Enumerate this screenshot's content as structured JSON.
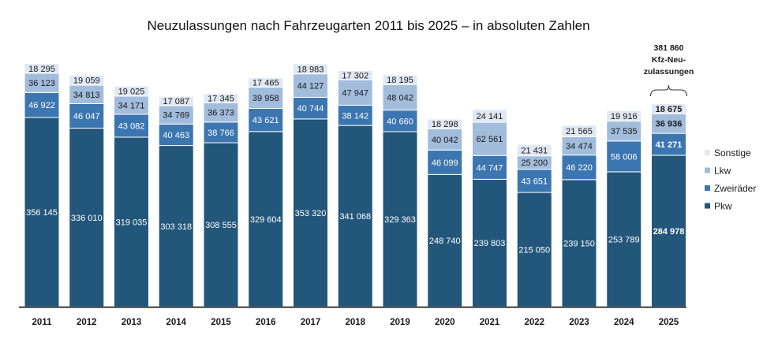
{
  "chart_data": {
    "type": "bar",
    "stacked": true,
    "title": "Neuzulassungen nach Fahrzeugarten 2011 bis 2025 – in absoluten Zahlen",
    "xlabel": "",
    "ylabel": "",
    "ylim": [
      0,
      460000
    ],
    "grid": false,
    "legend_position": "right",
    "categories": [
      "2011",
      "2012",
      "2013",
      "2014",
      "2015",
      "2016",
      "2017",
      "2018",
      "2019",
      "2020",
      "2021",
      "2022",
      "2023",
      "2024",
      "2025"
    ],
    "series": [
      {
        "name": "Pkw",
        "color": "#22567a",
        "label_color": "#ffffff",
        "values": [
          356145,
          336010,
          319035,
          303318,
          308555,
          329604,
          353320,
          341068,
          329363,
          248740,
          239803,
          215050,
          239150,
          253789,
          284978
        ]
      },
      {
        "name": "Zweiräder",
        "color": "#3c76b1",
        "label_color": "#ffffff",
        "values": [
          46922,
          46047,
          43082,
          40463,
          38766,
          43621,
          40744,
          38142,
          40660,
          46099,
          44747,
          43651,
          46220,
          58006,
          41271
        ]
      },
      {
        "name": "Lkw",
        "color": "#a2bcdc",
        "label_color": "#1a1a1a",
        "values": [
          36123,
          34813,
          34171,
          34769,
          36373,
          39958,
          44127,
          47947,
          48042,
          40042,
          62561,
          25200,
          34474,
          37535,
          36936
        ]
      },
      {
        "name": "Sonstige",
        "color": "#dfe8f3",
        "label_color": "#1a1a1a",
        "values": [
          18295,
          19059,
          19025,
          17087,
          17345,
          17465,
          18983,
          17302,
          18195,
          18298,
          24141,
          21431,
          21565,
          19916,
          18675
        ]
      }
    ],
    "data_labels": [
      [
        "356 145",
        "336 010",
        "319 035",
        "303 318",
        "308 555",
        "329 604",
        "353 320",
        "341 068",
        "329 363",
        "248 740",
        "239 803",
        "215 050",
        "239 150",
        "253 789",
        "284 978"
      ],
      [
        "46 922",
        "46 047",
        "43 082",
        "40 463",
        "38 766",
        "43 621",
        "40 744",
        "38 142",
        "40 660",
        "46 099",
        "44 747",
        "43 651",
        "46 220",
        "58 006",
        "41 271"
      ],
      [
        "36 123",
        "34 813",
        "34 171",
        "34 769",
        "36 373",
        "39 958",
        "44 127",
        "47 947",
        "48 042",
        "40 042",
        "62 561",
        "25 200",
        "34 474",
        "37 535",
        "36 936"
      ],
      [
        "18 295",
        "19 059",
        "19 025",
        "17 087",
        "17 345",
        "17 465",
        "18 983",
        "17 302",
        "18 195",
        "18 298",
        "24 141",
        "21 431",
        "21 565",
        "19 916",
        "18 675"
      ]
    ],
    "bold_category": "2025",
    "legend_order": [
      "Sonstige",
      "Lkw",
      "Zweiräder",
      "Pkw"
    ],
    "annotation": {
      "category": "2025",
      "lines": [
        "381 860",
        "Kfz-Neu-",
        "zulassungen"
      ],
      "bracket": true
    }
  }
}
